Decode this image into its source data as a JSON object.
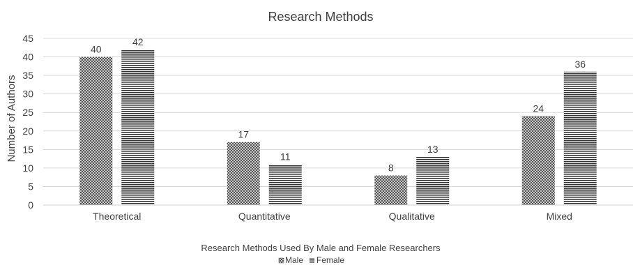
{
  "chart_data": {
    "type": "bar",
    "title": "Research Methods",
    "xlabel": "Research Methods Used By Male and Female Researchers",
    "ylabel": "Number of Authors",
    "categories": [
      "Theoretical",
      "Quantitative",
      "Qualitative",
      "Mixed"
    ],
    "series": [
      {
        "name": "Male",
        "values": [
          40,
          17,
          8,
          24
        ],
        "pattern": "crosshatch",
        "color": "#595959"
      },
      {
        "name": "Female",
        "values": [
          42,
          11,
          13,
          36
        ],
        "pattern": "horizontal-stripes",
        "color": "#404040"
      }
    ],
    "ylim": [
      0,
      45
    ],
    "yticks": [
      0,
      5,
      10,
      15,
      20,
      25,
      30,
      35,
      40,
      45
    ],
    "grid": true,
    "legend_position": "bottom",
    "data_labels": true
  }
}
